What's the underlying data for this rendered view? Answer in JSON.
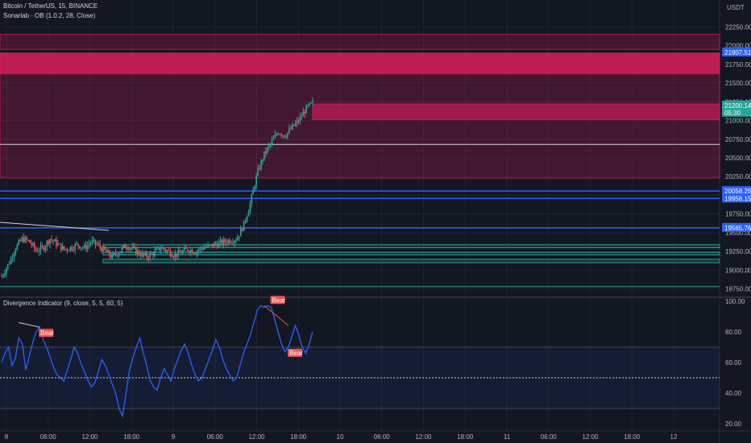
{
  "header": {
    "title": "Bitcoin / TetherUS, 15, BINANCE",
    "indicator1": "Sonarlab - OB (1.0.2, 28, Close)",
    "indicator2": "Divergence Indicator (9, close, 5, 5, 60, 5)",
    "currency": "USDT"
  },
  "price_axis": {
    "ticks": [
      "22250.00",
      "22000.00",
      "21750.00",
      "21500.00",
      "21250.00",
      "21000.00",
      "20750.00",
      "20500.00",
      "20250.00",
      "20000.00",
      "19750.00",
      "19500.00",
      "19250.00",
      "19000.00",
      "18750.00"
    ],
    "badges": [
      {
        "label": "21907.51",
        "color": "#2962ff"
      },
      {
        "label": "21200.14",
        "color": "#26a69a",
        "sub": "05:30"
      },
      {
        "label": "20058.25",
        "color": "#2962ff"
      },
      {
        "label": "19958.15",
        "color": "#2962ff"
      },
      {
        "label": "19565.76",
        "color": "#2962ff"
      }
    ]
  },
  "osc_axis": {
    "ticks": [
      "100.00",
      "80.00",
      "60.00",
      "40.00",
      "20.00"
    ]
  },
  "time_axis": {
    "ticks": [
      "8",
      "06:00",
      "12:00",
      "18:00",
      "9",
      "06:00",
      "12:00",
      "18:00",
      "10",
      "06:00",
      "12:00",
      "18:00",
      "11",
      "06:00",
      "12:00",
      "18:00",
      "12"
    ]
  },
  "signals": [
    "Bear",
    "Bear",
    "Bear"
  ],
  "colors": {
    "up": "#26a69a",
    "down": "#ef5350",
    "bear_zone": "#e91e63",
    "bull_zone": "#26a69a",
    "level": "#2962ff",
    "rsi": "#2962ff"
  },
  "chart_data": [
    {
      "type": "candlestick",
      "title": "Bitcoin / TetherUS, 15, BINANCE",
      "ylim": [
        18650,
        22350
      ],
      "x_range_days": [
        "8",
        "12"
      ],
      "price_path": [
        18920,
        19080,
        19300,
        19420,
        19380,
        19260,
        19300,
        19420,
        19350,
        19280,
        19300,
        19340,
        19300,
        19380,
        19330,
        19250,
        19180,
        19250,
        19330,
        19280,
        19220,
        19180,
        19230,
        19300,
        19260,
        19200,
        19240,
        19280,
        19250,
        19300,
        19320,
        19350,
        19370,
        19400,
        19420,
        19600,
        19900,
        20300,
        20550,
        20700,
        20850,
        20800,
        20900,
        21000,
        21150,
        21230
      ],
      "zones_bear": [
        [
          21950,
          22150
        ],
        [
          21630,
          21900
        ],
        [
          20230,
          21620
        ],
        [
          21010,
          21220
        ]
      ],
      "zones_bull": [
        [
          19300,
          19340
        ],
        [
          19205,
          19240
        ],
        [
          19100,
          19145
        ]
      ],
      "levels_blue": [
        20058.25,
        19958.15,
        19565.76
      ],
      "level_white": 20680,
      "level_green": 18780
    },
    {
      "type": "line",
      "title": "Divergence Indicator (9, close, 5, 5, 60, 5)",
      "ylim": [
        18,
        102
      ],
      "reference_lines": [
        70,
        50,
        30
      ],
      "series": [
        {
          "values": [
            60,
            66,
            70,
            58,
            63,
            76,
            72,
            55,
            64,
            73,
            80,
            83,
            75,
            70,
            64,
            57,
            52,
            50,
            48,
            55,
            62,
            70,
            66,
            59,
            54,
            48,
            44,
            47,
            54,
            62,
            58,
            52,
            46,
            40,
            30,
            25,
            40,
            55,
            63,
            70,
            76,
            66,
            58,
            48,
            44,
            42,
            50,
            56,
            52,
            48,
            56,
            62,
            68,
            72,
            66,
            58,
            52,
            48,
            50,
            56,
            62,
            68,
            75,
            70,
            62,
            56,
            52,
            48,
            50,
            58,
            66,
            72,
            78,
            86,
            94,
            97,
            96,
            97,
            96,
            88,
            80,
            72,
            67,
            70,
            77,
            84,
            78,
            70,
            66,
            72,
            80
          ]
        }
      ],
      "signals": [
        {
          "label": "Bear",
          "x_index": 11
        },
        {
          "label": "Bear",
          "x_index": 78
        },
        {
          "label": "Bear",
          "x_index": 83
        }
      ]
    }
  ]
}
